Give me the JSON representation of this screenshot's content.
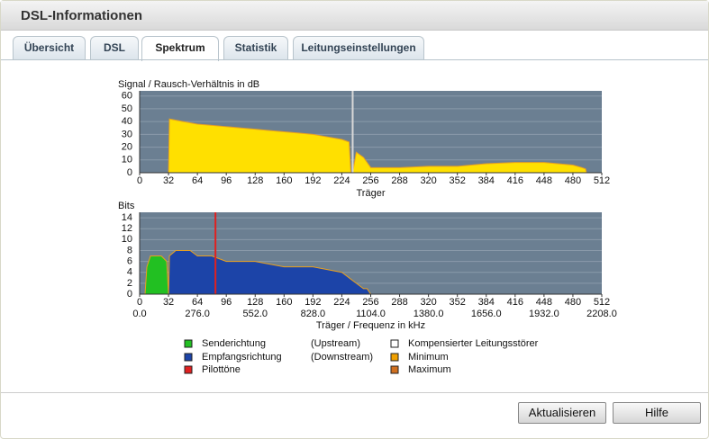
{
  "header": {
    "title": "DSL-Informationen"
  },
  "tabs": [
    "Übersicht",
    "DSL",
    "Spektrum",
    "Statistik",
    "Leitungseinstellungen"
  ],
  "active_tab": 2,
  "chart_data": [
    {
      "type": "area",
      "title": "Signal / Rausch-Verhältnis in dB",
      "x_label": "Träger",
      "xlim": [
        0,
        512
      ],
      "xticks": [
        0,
        32,
        64,
        96,
        128,
        160,
        192,
        224,
        256,
        288,
        320,
        352,
        384,
        416,
        448,
        480,
        512
      ],
      "ylim": [
        0,
        64
      ],
      "yticks": [
        0,
        10,
        20,
        30,
        40,
        50,
        60
      ],
      "grid": true,
      "series": [
        {
          "name": "SNR",
          "color": "#ffe000",
          "x": [
            0,
            31,
            32,
            33,
            48,
            64,
            80,
            96,
            112,
            128,
            144,
            160,
            176,
            192,
            208,
            224,
            232,
            234,
            236,
            240,
            248,
            256,
            272,
            288,
            320,
            352,
            384,
            416,
            448,
            480,
            490,
            494,
            495,
            512
          ],
          "values": [
            0,
            0,
            0,
            42,
            40,
            38,
            37,
            36,
            35,
            34,
            33,
            32,
            31,
            30,
            28,
            26,
            24,
            0,
            0,
            16,
            12,
            4,
            4,
            4,
            5,
            5,
            7,
            8,
            8,
            6,
            4,
            3,
            0,
            0
          ]
        }
      ],
      "markers": {
        "color": "#d8d8d8",
        "x": [
          236
        ]
      }
    },
    {
      "type": "area",
      "title": "Bits",
      "x_label": "Träger / Frequenz in kHz",
      "xlim": [
        0,
        512
      ],
      "xticks": [
        0,
        32,
        64,
        96,
        128,
        160,
        192,
        224,
        256,
        288,
        320,
        352,
        384,
        416,
        448,
        480,
        512
      ],
      "x2lim": [
        0,
        2208
      ],
      "x2ticks": [
        {
          "value": 0,
          "label": "0.0"
        },
        {
          "value": 276,
          "label": "276.0"
        },
        {
          "value": 552,
          "label": "552.0"
        },
        {
          "value": 828,
          "label": "828.0"
        },
        {
          "value": 1104,
          "label": "1104.0"
        },
        {
          "value": 1380,
          "label": "1380.0"
        },
        {
          "value": 1656,
          "label": "1656.0"
        },
        {
          "value": 1932,
          "label": "1932.0"
        },
        {
          "value": 2208,
          "label": "2208.0"
        }
      ],
      "ylim": [
        0,
        15
      ],
      "yticks": [
        0,
        2,
        4,
        6,
        8,
        10,
        12,
        14
      ],
      "grid": true,
      "series": [
        {
          "name": "Senderichtung",
          "color": "#22c022",
          "x": [
            0,
            6,
            8,
            12,
            24,
            30,
            32
          ],
          "values": [
            0,
            0,
            5,
            7,
            7,
            6,
            0
          ]
        },
        {
          "name": "Empfangsrichtung",
          "color": "#1c44a8",
          "x": [
            32,
            33,
            40,
            56,
            64,
            80,
            96,
            128,
            160,
            192,
            224,
            232,
            240,
            248,
            252,
            256
          ],
          "values": [
            0,
            7,
            8,
            8,
            7,
            7,
            6,
            6,
            5,
            5,
            4,
            3,
            2,
            1,
            1,
            0
          ]
        }
      ],
      "markers": {
        "color": "#e02020",
        "x": [
          84
        ]
      }
    }
  ],
  "legend": [
    {
      "name": "Senderichtung",
      "note": "(Upstream)",
      "color": "#22c022"
    },
    {
      "name": "Empfangsrichtung",
      "note": "(Downstream)",
      "color": "#1c44a8"
    },
    {
      "name": "Pilottöne",
      "color": "#e02020"
    },
    {
      "name": "Kompensierter Leitungsstörer",
      "color": "#ffffff"
    },
    {
      "name": "Minimum",
      "color": "#f0a000"
    },
    {
      "name": "Maximum",
      "color": "#d07020"
    }
  ],
  "buttons": [
    "Aktualisieren",
    "Hilfe"
  ]
}
